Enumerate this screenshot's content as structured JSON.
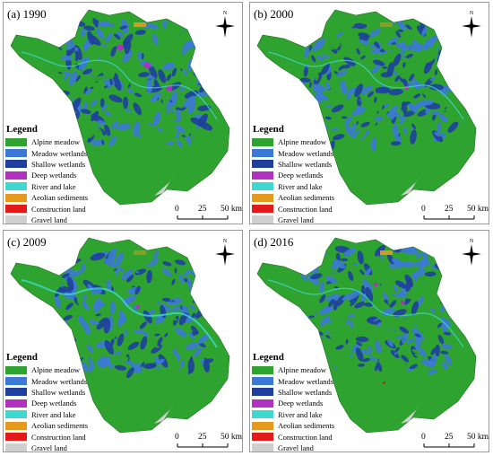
{
  "panels": [
    {
      "label": "(a) 1990",
      "year": "1990"
    },
    {
      "label": "(b) 2000",
      "year": "2000"
    },
    {
      "label": "(c) 2009",
      "year": "2009"
    },
    {
      "label": "(d) 2016",
      "year": "2016"
    }
  ],
  "legend": {
    "title": "Legend",
    "items": [
      {
        "label": "Alpine meadow",
        "color": "#2fa32f"
      },
      {
        "label": "Meadow wetlands",
        "color": "#3c79d6"
      },
      {
        "label": "Shallow wetlands",
        "color": "#1f3f9e"
      },
      {
        "label": "Deep wetlands",
        "color": "#b030c0"
      },
      {
        "label": "River and lake",
        "color": "#3fd8d0"
      },
      {
        "label": "Aeolian sediments",
        "color": "#e59a1e"
      },
      {
        "label": "Construction land",
        "color": "#e31a1a"
      },
      {
        "label": "Gravel land",
        "color": "#cfcfcf"
      }
    ]
  },
  "scale": {
    "tick0": "0",
    "tick1": "25",
    "tick2": "50 km"
  },
  "north_label": "N"
}
